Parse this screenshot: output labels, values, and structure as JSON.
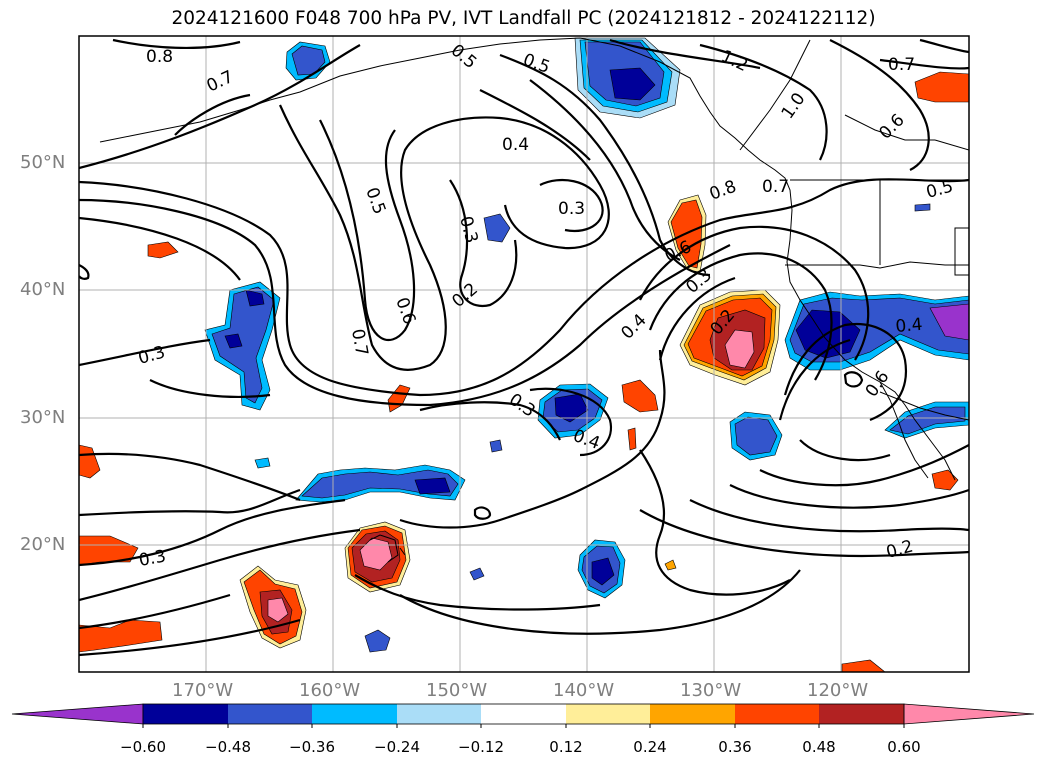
{
  "title": "2024121600 F048 700 hPa PV, IVT Landfall PC (2024121812 - 2024122112)",
  "map": {
    "lat_labels": [
      "50°N",
      "40°N",
      "30°N",
      "20°N"
    ],
    "lon_labels": [
      "170°W",
      "160°W",
      "150°W",
      "140°W",
      "130°W",
      "120°W"
    ],
    "contour_labels": [
      "0.8",
      "0.7",
      "0.5",
      "0.5",
      "1.2",
      "0.7",
      "1.0",
      "0.6",
      "0.5",
      "0.4",
      "0.3",
      "0.5",
      "0.3",
      "0.2",
      "0.8",
      "0.7",
      "0.6",
      "0.3",
      "0.4",
      "0.2",
      "0.7",
      "0.6",
      "0.3",
      "0.3",
      "0.4",
      "0.3",
      "0.2",
      "0.4",
      "0.6"
    ],
    "colors": {
      "neg_extend": "#9933cc",
      "neg060": "#000099",
      "neg048": "#3355cc",
      "neg036": "#00bbff",
      "neg024": "#aaddf7",
      "pos012": "#ffee99",
      "pos024": "#ffa500",
      "pos036": "#ff4400",
      "pos048": "#b22222",
      "pos060": "#ff88aa"
    }
  },
  "colorbar": {
    "tick_labels": [
      "−0.60",
      "−0.48",
      "−0.36",
      "−0.24",
      "−0.12",
      "0.12",
      "0.24",
      "0.36",
      "0.48",
      "0.60"
    ],
    "segments": [
      "#9933cc",
      "#000099",
      "#3355cc",
      "#00bbff",
      "#aaddf7",
      "#ffffff",
      "#ffee99",
      "#ffa500",
      "#ff4400",
      "#b22222",
      "#ff88aa"
    ]
  }
}
